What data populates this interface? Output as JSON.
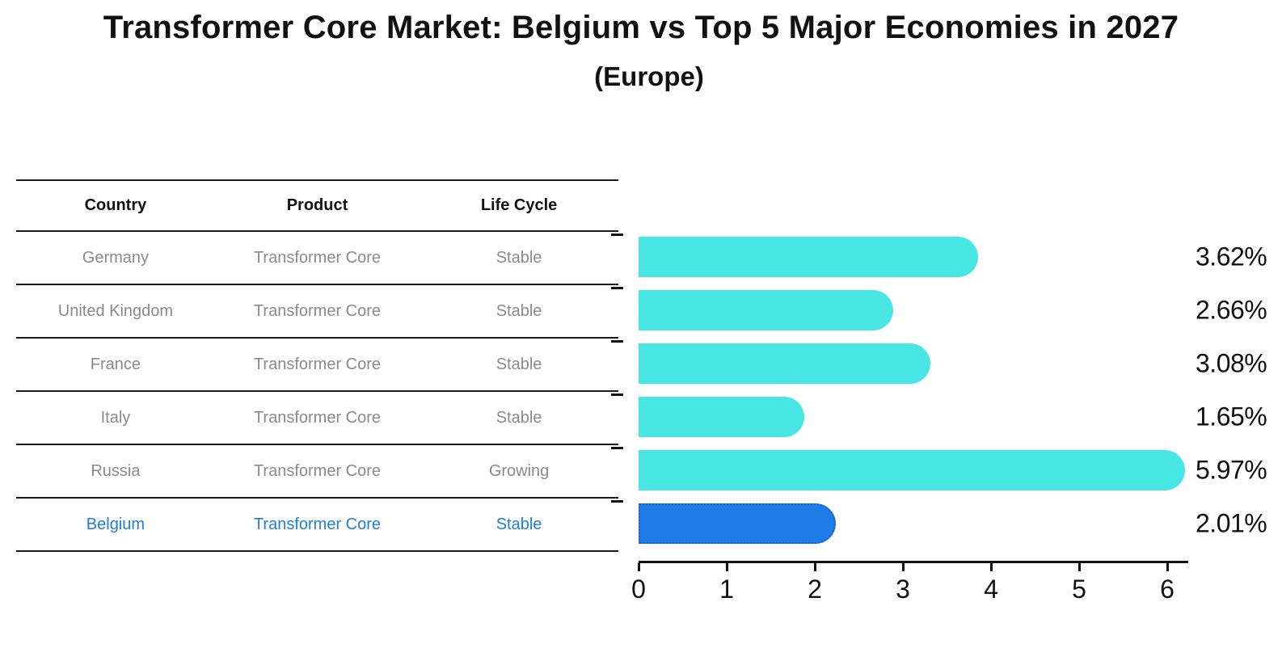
{
  "title": "Transformer Core Market: Belgium vs Top 5 Major Economies in 2027",
  "subtitle": "(Europe)",
  "table": {
    "headers": [
      "Country",
      "Product",
      "Life Cycle"
    ],
    "rows": [
      {
        "country": "Germany",
        "product": "Transformer Core",
        "life_cycle": "Stable"
      },
      {
        "country": "United Kingdom",
        "product": "Transformer Core",
        "life_cycle": "Stable"
      },
      {
        "country": "France",
        "product": "Transformer Core",
        "life_cycle": "Stable"
      },
      {
        "country": "Italy",
        "product": "Transformer Core",
        "life_cycle": "Stable"
      },
      {
        "country": "Russia",
        "product": "Transformer Core",
        "life_cycle": "Growing"
      },
      {
        "country": "Belgium",
        "product": "Transformer Core",
        "life_cycle": "Stable"
      }
    ],
    "highlighted_row": "Belgium"
  },
  "chart_data": {
    "type": "bar",
    "orientation": "horizontal",
    "categories": [
      "Germany",
      "United Kingdom",
      "France",
      "Italy",
      "Russia",
      "Belgium"
    ],
    "values": [
      3.62,
      2.66,
      3.08,
      1.65,
      5.97,
      2.01
    ],
    "value_labels": [
      "3.62%",
      "2.66%",
      "3.08%",
      "1.65%",
      "5.97%",
      "2.01%"
    ],
    "x_ticks": [
      "0",
      "1",
      "2",
      "3",
      "4",
      "5",
      "6"
    ],
    "xlim": [
      0,
      6.2
    ],
    "grid": false,
    "legend": false,
    "highlight_index": 5,
    "bar_color": "#47E6E3",
    "highlight_bar_color": "#1E7BE8",
    "highlight_border_color": "#1563D2"
  },
  "colors": {
    "title_text": "#111111",
    "table_text": "#8a8a8a",
    "highlight_text": "#1F7ED6",
    "axis": "#111111"
  }
}
